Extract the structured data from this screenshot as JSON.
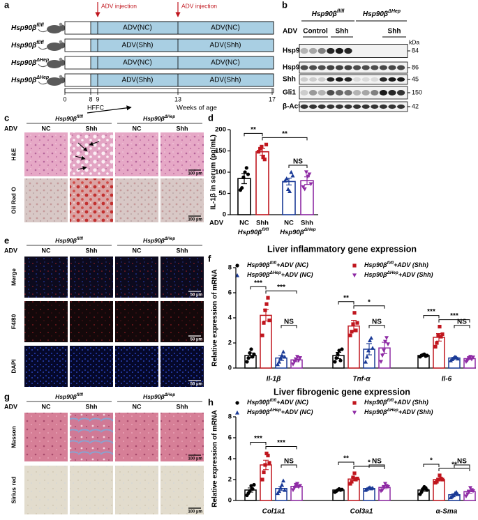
{
  "panel_labels": [
    "a",
    "b",
    "c",
    "d",
    "e",
    "f",
    "g",
    "h"
  ],
  "schematic": {
    "injection_label": "ADV injection",
    "rows": [
      {
        "genotype": "Hsp90βfl/fl",
        "left": "ADV(NC)",
        "right": "ADV(NC)"
      },
      {
        "genotype": "Hsp90βfl/fl",
        "left": "ADV(Shh)",
        "right": "ADV(Shh)"
      },
      {
        "genotype": "Hsp90βΔHep",
        "left": "ADV(NC)",
        "right": "ADV(NC)"
      },
      {
        "genotype": "Hsp90βΔHep",
        "left": "ADV(Shh)",
        "right": "ADV(Shh)"
      }
    ],
    "weeks": [
      "0",
      "8",
      "9",
      "13",
      "17"
    ],
    "phase": "HFFC",
    "axis_label": "Weeks of age"
  },
  "western": {
    "genotypes": [
      "Hsp90βfl/fl",
      "Hsp90βΔHep"
    ],
    "adv": "ADV",
    "conditions": [
      "Control",
      "Shh",
      "Shh"
    ],
    "unit": "kDa",
    "proteins": [
      {
        "name": "Hsp90β",
        "kda": "84"
      },
      {
        "name": "Hsp90α",
        "kda": "86"
      },
      {
        "name": "Shh",
        "kda": "45"
      },
      {
        "name": "Gli1",
        "kda": "150"
      },
      {
        "name": "β-Actin",
        "kda": "42"
      }
    ]
  },
  "histology_c": {
    "genotypes": [
      "Hsp90βfl/fl",
      "Hsp90βΔHep"
    ],
    "adv": "ADV",
    "conditions": [
      "NC",
      "Shh",
      "NC",
      "Shh"
    ],
    "stains": [
      "H&E",
      "Oil Red O"
    ],
    "scale": "100 μm"
  },
  "fluorescence_e": {
    "genotypes": [
      "Hsp90βfl/fl",
      "Hsp90βΔHep"
    ],
    "adv": "ADV",
    "conditions": [
      "NC",
      "Shh",
      "NC",
      "Shh"
    ],
    "stains": [
      "Merge",
      "F4/80",
      "DAPI"
    ],
    "scale": "50 μm"
  },
  "histology_g": {
    "genotypes": [
      "Hsp90βfl/fl",
      "Hsp90βΔHep"
    ],
    "adv": "ADV",
    "conditions": [
      "NC",
      "Shh",
      "NC",
      "Shh"
    ],
    "stains": [
      "Masson",
      "Sirius red"
    ],
    "scale": "100 μm"
  },
  "chart_data": [
    {
      "type": "bar",
      "ylabel": "IL-1β in serum (pg/mL)",
      "xlabel": "ADV",
      "categories": [
        "NC",
        "Shh",
        "NC",
        "Shh"
      ],
      "groups": [
        "Hsp90βfl/fl",
        "Hsp90βΔHep"
      ],
      "values": [
        85,
        148,
        78,
        80
      ],
      "errors": [
        12,
        8,
        8,
        9
      ],
      "points": [
        [
          58,
          63,
          88,
          100,
          110,
          95
        ],
        [
          148,
          155,
          160,
          135,
          130,
          165
        ],
        [
          80,
          85,
          60,
          55,
          100,
          92
        ],
        [
          65,
          60,
          100,
          90,
          95,
          72
        ]
      ],
      "colors": [
        "#000000",
        "#c0161e",
        "#1a3a96",
        "#8e2aa4"
      ],
      "ylim": [
        0,
        200
      ],
      "yticks": [
        0,
        50,
        100,
        150,
        200
      ],
      "significance": [
        "**",
        "**",
        "NS"
      ]
    },
    {
      "type": "grouped_bar",
      "title": "Liver inflammatory gene expression",
      "ylabel": "Relative expression of mRNA",
      "categories": [
        "Il-1β",
        "Tnf-α",
        "Il-6"
      ],
      "series": [
        {
          "name": "Hsp90βfl/fl+ADV (NC)",
          "color": "#000000",
          "values": [
            1.0,
            1.0,
            1.0
          ],
          "errors": [
            0.2,
            0.25,
            0.05
          ],
          "points": [
            [
              0.5,
              0.8,
              1.2,
              1.5,
              0.9,
              1.1
            ],
            [
              0.5,
              0.8,
              1.1,
              1.4,
              0.6,
              1.5
            ],
            [
              0.9,
              1.0,
              1.05,
              1.1,
              0.95,
              1.0
            ]
          ]
        },
        {
          "name": "Hsp90βfl/fl+ADV (Shh)",
          "color": "#c0161e",
          "values": [
            4.2,
            3.35,
            2.45
          ],
          "errors": [
            0.45,
            0.45,
            0.3
          ],
          "points": [
            [
              2.6,
              3.6,
              4.6,
              5.1,
              5.6,
              3.8
            ],
            [
              2.6,
              2.9,
              3.5,
              4.4,
              3.0,
              3.6
            ],
            [
              1.7,
              2.0,
              2.6,
              3.3,
              2.5,
              2.7
            ]
          ]
        },
        {
          "name": "Hsp90βΔHep+ADV (NC)",
          "color": "#1a3a96",
          "values": [
            0.8,
            1.5,
            0.8
          ],
          "errors": [
            0.2,
            0.45,
            0.05
          ],
          "points": [
            [
              0.3,
              0.5,
              0.8,
              1.0,
              1.3,
              0.9
            ],
            [
              0.5,
              0.9,
              1.4,
              2.2,
              2.4,
              1.6
            ],
            [
              0.6,
              0.7,
              0.8,
              0.9,
              0.85,
              0.75
            ]
          ]
        },
        {
          "name": "Hsp90βΔHep+ADV (Shh)",
          "color": "#8e2aa4",
          "values": [
            0.65,
            1.6,
            0.75
          ],
          "errors": [
            0.15,
            0.45,
            0.07
          ],
          "points": [
            [
              0.3,
              0.5,
              0.7,
              0.9,
              0.6,
              0.8
            ],
            [
              0.5,
              1.0,
              1.4,
              2.1,
              2.4,
              1.9
            ],
            [
              0.5,
              0.6,
              0.8,
              0.9,
              0.7,
              0.85
            ]
          ]
        }
      ],
      "ylim": [
        0,
        8
      ],
      "yticks": [
        0,
        2,
        4,
        6,
        8
      ],
      "significance": [
        [
          "***",
          "***",
          "NS"
        ],
        [
          "**",
          "*",
          "NS"
        ],
        [
          "***",
          "***",
          "NS"
        ]
      ]
    },
    {
      "type": "grouped_bar",
      "title": "Liver fibrogenic gene expression",
      "ylabel": "Relative expression of mRNA",
      "categories": [
        "Col1a1",
        "Col3a1",
        "α-Sma"
      ],
      "series": [
        {
          "name": "Hsp90βfl/fl+ADV (NC)",
          "color": "#000000",
          "values": [
            1.0,
            1.0,
            1.0
          ],
          "errors": [
            0.2,
            0.05,
            0.12
          ],
          "points": [
            [
              0.5,
              0.7,
              0.9,
              1.4,
              1.1,
              1.5
            ],
            [
              0.8,
              0.9,
              1.0,
              1.1,
              1.0,
              1.05
            ],
            [
              0.6,
              0.8,
              1.1,
              1.3,
              1.2,
              1.0
            ]
          ]
        },
        {
          "name": "Hsp90βfl/fl+ADV (Shh)",
          "color": "#c0161e",
          "values": [
            3.4,
            2.05,
            2.0
          ],
          "errors": [
            0.45,
            0.15,
            0.12
          ],
          "points": [
            [
              2.0,
              2.7,
              3.4,
              4.5,
              4.3,
              3.6
            ],
            [
              1.6,
              1.8,
              2.2,
              2.6,
              2.0,
              2.1
            ],
            [
              1.7,
              1.8,
              2.0,
              2.4,
              2.1,
              2.0
            ]
          ]
        },
        {
          "name": "Hsp90βΔHep+ADV (NC)",
          "color": "#1a3a96",
          "values": [
            1.15,
            1.15,
            0.55
          ],
          "errors": [
            0.2,
            0.05,
            0.1
          ],
          "points": [
            [
              0.7,
              0.9,
              1.2,
              1.5,
              1.9,
              1.0
            ],
            [
              1.0,
              1.1,
              1.2,
              1.25,
              1.15,
              1.2
            ],
            [
              0.3,
              0.4,
              0.5,
              0.7,
              0.8,
              0.6
            ]
          ]
        },
        {
          "name": "Hsp90βΔHep+ADV (Shh)",
          "color": "#8e2aa4",
          "values": [
            1.35,
            1.25,
            0.85
          ],
          "errors": [
            0.1,
            0.12,
            0.15
          ],
          "points": [
            [
              1.0,
              1.2,
              1.5,
              1.6,
              1.3,
              1.4
            ],
            [
              0.9,
              1.0,
              1.3,
              1.6,
              1.4,
              1.3
            ],
            [
              0.4,
              0.6,
              0.8,
              1.2,
              1.0,
              0.9
            ]
          ]
        }
      ],
      "ylim": [
        0,
        8
      ],
      "yticks": [
        0,
        2,
        4,
        6,
        8
      ],
      "significance": [
        [
          "***",
          "***",
          "NS"
        ],
        [
          "**",
          "*",
          "NS"
        ],
        [
          "*",
          "**",
          "NS"
        ]
      ]
    }
  ]
}
